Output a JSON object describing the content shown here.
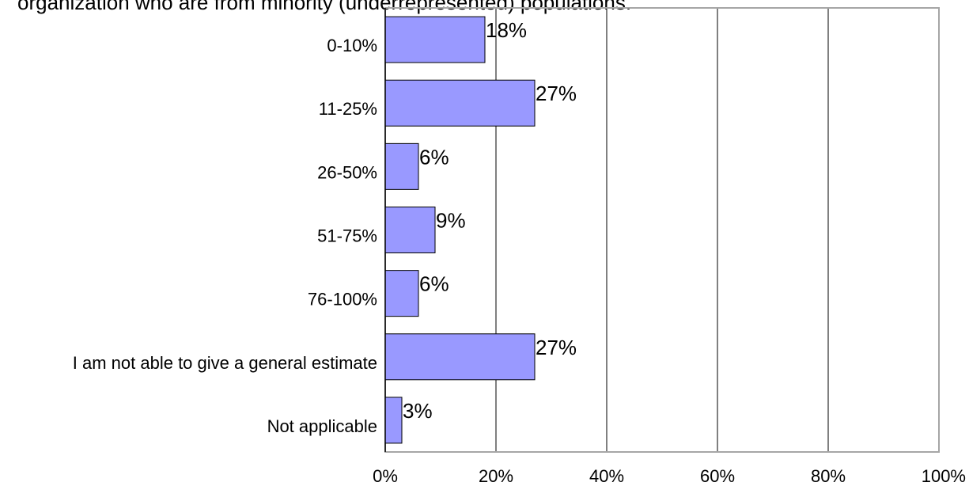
{
  "chart_data": {
    "type": "bar",
    "orientation": "horizontal",
    "title": "organization who are from minority (underrepresented) populations.",
    "categories": [
      "0-10%",
      "11-25%",
      "26-50%",
      "51-75%",
      "76-100%",
      "I am not able to give a general estimate",
      "Not applicable"
    ],
    "values": [
      18,
      27,
      6,
      9,
      6,
      27,
      3
    ],
    "value_labels": [
      "18%",
      "27%",
      "6%",
      "9%",
      "6%",
      "27%",
      "3%"
    ],
    "xlim": [
      0,
      100
    ],
    "x_ticks": [
      "0%",
      "20%",
      "40%",
      "60%",
      "80%",
      "100%"
    ],
    "grid": "vertical",
    "legend": "none",
    "colors": {
      "bar_fill": "#9999ff",
      "bar_stroke": "#000000",
      "gridline": "#000000",
      "frame": "#a6a6a6"
    }
  }
}
